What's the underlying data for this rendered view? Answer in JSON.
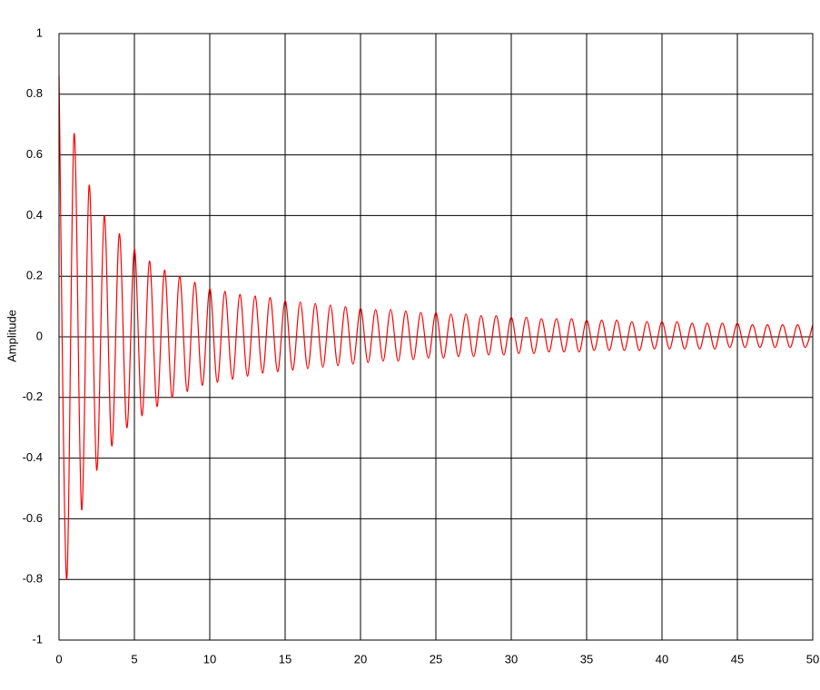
{
  "chart_data": {
    "type": "line",
    "ylabel": "Amplitude",
    "xlim": [
      0,
      50
    ],
    "xticks": [
      0,
      5,
      10,
      15,
      20,
      25,
      30,
      35,
      40,
      45,
      50
    ],
    "ylim": [
      -1,
      1
    ],
    "yticks": [
      -1,
      -0.8,
      -0.6,
      -0.4,
      -0.2,
      0,
      0.2,
      0.4,
      0.6,
      0.8,
      1
    ],
    "grid": true,
    "series": [
      {
        "color": "#ff0000",
        "x": [
          0,
          0.5,
          1,
          1.5,
          2,
          2.5,
          3,
          3.5,
          4,
          4.5,
          5,
          5.5,
          6,
          6.5,
          7,
          7.5,
          8,
          8.5,
          9,
          9.5,
          10,
          10.5,
          11,
          11.5,
          12,
          12.5,
          13,
          13.5,
          14,
          14.5,
          15,
          15.5,
          16,
          16.5,
          17,
          17.5,
          18,
          18.5,
          19,
          19.5,
          20,
          20.5,
          21,
          21.5,
          22,
          22.5,
          23,
          23.5,
          24,
          24.5,
          25,
          25.5,
          26,
          26.5,
          27,
          27.5,
          28,
          28.5,
          29,
          29.5,
          30,
          30.5,
          31,
          31.5,
          32,
          32.5,
          33,
          33.5,
          34,
          34.5,
          35,
          35.5,
          36,
          36.5,
          37,
          37.5,
          38,
          38.5,
          39,
          39.5,
          40,
          40.5,
          41,
          41.5,
          42,
          42.5,
          43,
          43.5,
          44,
          44.5,
          45,
          45.5,
          46,
          46.5,
          47,
          47.5,
          48,
          48.5,
          49,
          49.5,
          50
        ],
        "values": [
          0.86,
          -0.8,
          0.67,
          -0.57,
          0.5,
          -0.44,
          0.4,
          -0.36,
          0.34,
          -0.3,
          0.29,
          -0.26,
          0.25,
          -0.23,
          0.22,
          -0.2,
          0.2,
          -0.18,
          0.18,
          -0.16,
          0.16,
          -0.15,
          0.15,
          -0.14,
          0.14,
          -0.13,
          0.135,
          -0.12,
          0.13,
          -0.115,
          0.12,
          -0.11,
          0.115,
          -0.105,
          0.11,
          -0.1,
          0.105,
          -0.095,
          0.1,
          -0.09,
          0.095,
          -0.085,
          0.09,
          -0.08,
          0.09,
          -0.08,
          0.085,
          -0.075,
          0.08,
          -0.07,
          0.08,
          -0.07,
          0.075,
          -0.065,
          0.075,
          -0.065,
          0.07,
          -0.06,
          0.07,
          -0.06,
          0.065,
          -0.055,
          0.065,
          -0.055,
          0.06,
          -0.05,
          0.06,
          -0.05,
          0.06,
          -0.05,
          0.055,
          -0.045,
          0.055,
          -0.045,
          0.055,
          -0.045,
          0.05,
          -0.045,
          0.05,
          -0.04,
          0.05,
          -0.04,
          0.05,
          -0.04,
          0.045,
          -0.04,
          0.045,
          -0.04,
          0.045,
          -0.035,
          0.045,
          -0.035,
          0.04,
          -0.035,
          0.04,
          -0.035,
          0.04,
          -0.035,
          0.04,
          -0.035,
          0.04
        ]
      }
    ]
  }
}
